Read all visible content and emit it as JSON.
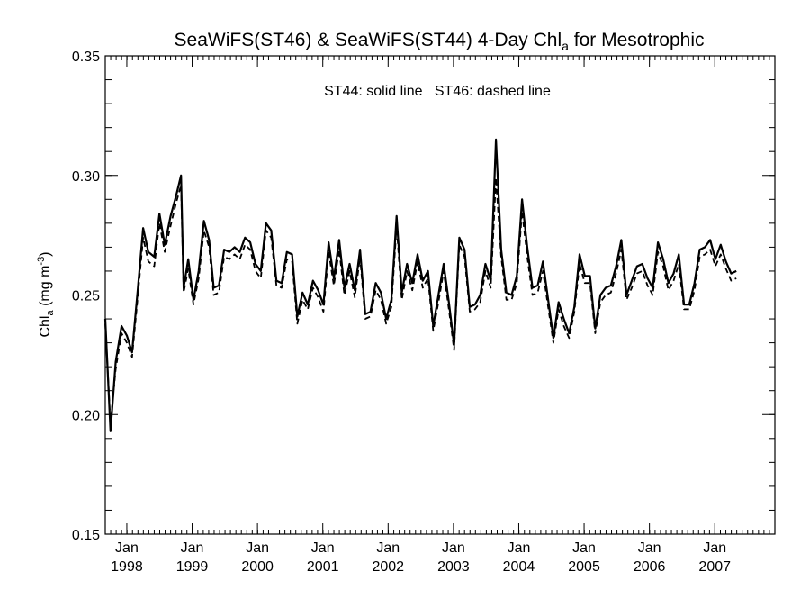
{
  "chart_data": {
    "type": "line",
    "title": {
      "prefix": "SeaWiFS(ST46) & SeaWiFS(ST44) 4-Day Chl",
      "subscript": "a",
      "suffix": " for Mesotrophic"
    },
    "ylabel": {
      "main": "Chl",
      "subscript": "a",
      "unit": " (mg m",
      "superscript": "-3",
      "close": ")"
    },
    "annotation": "ST44: solid line   ST46: dashed line",
    "xlim": [
      1997.67,
      2007.92
    ],
    "ylim": [
      0.15,
      0.35
    ],
    "y_ticks": [
      {
        "value": 0.15,
        "label": "0.15"
      },
      {
        "value": 0.2,
        "label": "0.20"
      },
      {
        "value": 0.25,
        "label": "0.25"
      },
      {
        "value": 0.3,
        "label": "0.30"
      },
      {
        "value": 0.35,
        "label": "0.35"
      }
    ],
    "y_minor_step": 0.01,
    "x_ticks": [
      {
        "value": 1998.0,
        "month": "Jan",
        "year": "1998"
      },
      {
        "value": 1999.0,
        "month": "Jan",
        "year": "1999"
      },
      {
        "value": 2000.0,
        "month": "Jan",
        "year": "2000"
      },
      {
        "value": 2001.0,
        "month": "Jan",
        "year": "2001"
      },
      {
        "value": 2002.0,
        "month": "Jan",
        "year": "2002"
      },
      {
        "value": 2003.0,
        "month": "Jan",
        "year": "2003"
      },
      {
        "value": 2004.0,
        "month": "Jan",
        "year": "2004"
      },
      {
        "value": 2005.0,
        "month": "Jan",
        "year": "2005"
      },
      {
        "value": 2006.0,
        "month": "Jan",
        "year": "2006"
      },
      {
        "value": 2007.0,
        "month": "Jan",
        "year": "2007"
      }
    ],
    "x_minor_step": 0.08333,
    "series": [
      {
        "name": "ST44",
        "style": "solid",
        "points": [
          [
            1997.67,
            0.24
          ],
          [
            1997.75,
            0.193
          ],
          [
            1997.83,
            0.222
          ],
          [
            1997.92,
            0.237
          ],
          [
            1998.0,
            0.233
          ],
          [
            1998.08,
            0.226
          ],
          [
            1998.17,
            0.253
          ],
          [
            1998.25,
            0.278
          ],
          [
            1998.33,
            0.268
          ],
          [
            1998.42,
            0.266
          ],
          [
            1998.5,
            0.284
          ],
          [
            1998.58,
            0.271
          ],
          [
            1998.67,
            0.283
          ],
          [
            1998.75,
            0.291
          ],
          [
            1998.83,
            0.3
          ],
          [
            1998.87,
            0.253
          ],
          [
            1998.94,
            0.265
          ],
          [
            1999.02,
            0.248
          ],
          [
            1999.1,
            0.26
          ],
          [
            1999.18,
            0.281
          ],
          [
            1999.26,
            0.273
          ],
          [
            1999.33,
            0.253
          ],
          [
            1999.41,
            0.254
          ],
          [
            1999.49,
            0.269
          ],
          [
            1999.57,
            0.268
          ],
          [
            1999.65,
            0.27
          ],
          [
            1999.73,
            0.268
          ],
          [
            1999.81,
            0.274
          ],
          [
            1999.89,
            0.272
          ],
          [
            1999.97,
            0.263
          ],
          [
            2000.05,
            0.26
          ],
          [
            2000.13,
            0.28
          ],
          [
            2000.21,
            0.277
          ],
          [
            2000.29,
            0.256
          ],
          [
            2000.37,
            0.255
          ],
          [
            2000.45,
            0.268
          ],
          [
            2000.53,
            0.267
          ],
          [
            2000.61,
            0.241
          ],
          [
            2000.69,
            0.251
          ],
          [
            2000.77,
            0.246
          ],
          [
            2000.85,
            0.256
          ],
          [
            2000.93,
            0.252
          ],
          [
            2001.01,
            0.246
          ],
          [
            2001.09,
            0.272
          ],
          [
            2001.17,
            0.257
          ],
          [
            2001.25,
            0.273
          ],
          [
            2001.33,
            0.253
          ],
          [
            2001.41,
            0.263
          ],
          [
            2001.49,
            0.252
          ],
          [
            2001.57,
            0.269
          ],
          [
            2001.65,
            0.242
          ],
          [
            2001.73,
            0.243
          ],
          [
            2001.81,
            0.255
          ],
          [
            2001.89,
            0.251
          ],
          [
            2001.97,
            0.24
          ],
          [
            2002.05,
            0.248
          ],
          [
            2002.13,
            0.283
          ],
          [
            2002.21,
            0.251
          ],
          [
            2002.29,
            0.263
          ],
          [
            2002.37,
            0.255
          ],
          [
            2002.45,
            0.267
          ],
          [
            2002.53,
            0.256
          ],
          [
            2002.61,
            0.26
          ],
          [
            2002.69,
            0.237
          ],
          [
            2002.77,
            0.25
          ],
          [
            2002.85,
            0.263
          ],
          [
            2002.93,
            0.247
          ],
          [
            2003.01,
            0.229
          ],
          [
            2003.09,
            0.274
          ],
          [
            2003.17,
            0.269
          ],
          [
            2003.25,
            0.245
          ],
          [
            2003.33,
            0.246
          ],
          [
            2003.41,
            0.25
          ],
          [
            2003.49,
            0.263
          ],
          [
            2003.57,
            0.256
          ],
          [
            2003.65,
            0.315
          ],
          [
            2003.73,
            0.269
          ],
          [
            2003.81,
            0.251
          ],
          [
            2003.89,
            0.25
          ],
          [
            2003.97,
            0.258
          ],
          [
            2004.05,
            0.29
          ],
          [
            2004.13,
            0.27
          ],
          [
            2004.21,
            0.253
          ],
          [
            2004.29,
            0.254
          ],
          [
            2004.37,
            0.264
          ],
          [
            2004.45,
            0.248
          ],
          [
            2004.53,
            0.232
          ],
          [
            2004.61,
            0.247
          ],
          [
            2004.69,
            0.24
          ],
          [
            2004.77,
            0.234
          ],
          [
            2004.85,
            0.245
          ],
          [
            2004.93,
            0.267
          ],
          [
            2005.01,
            0.258
          ],
          [
            2005.09,
            0.258
          ],
          [
            2005.17,
            0.236
          ],
          [
            2005.25,
            0.25
          ],
          [
            2005.33,
            0.253
          ],
          [
            2005.41,
            0.254
          ],
          [
            2005.49,
            0.262
          ],
          [
            2005.57,
            0.273
          ],
          [
            2005.65,
            0.25
          ],
          [
            2005.73,
            0.256
          ],
          [
            2005.81,
            0.262
          ],
          [
            2005.89,
            0.263
          ],
          [
            2005.97,
            0.257
          ],
          [
            2006.05,
            0.253
          ],
          [
            2006.13,
            0.272
          ],
          [
            2006.21,
            0.265
          ],
          [
            2006.29,
            0.255
          ],
          [
            2006.37,
            0.259
          ],
          [
            2006.45,
            0.267
          ],
          [
            2006.53,
            0.246
          ],
          [
            2006.61,
            0.246
          ],
          [
            2006.69,
            0.255
          ],
          [
            2006.77,
            0.269
          ],
          [
            2006.85,
            0.27
          ],
          [
            2006.93,
            0.273
          ],
          [
            2007.01,
            0.265
          ],
          [
            2007.09,
            0.271
          ],
          [
            2007.17,
            0.264
          ],
          [
            2007.25,
            0.259
          ],
          [
            2007.33,
            0.26
          ]
        ]
      },
      {
        "name": "ST46",
        "style": "dashed",
        "points": [
          [
            1997.67,
            0.238
          ],
          [
            1997.75,
            0.196
          ],
          [
            1997.83,
            0.219
          ],
          [
            1997.92,
            0.234
          ],
          [
            1998.0,
            0.23
          ],
          [
            1998.08,
            0.224
          ],
          [
            1998.17,
            0.25
          ],
          [
            1998.25,
            0.274
          ],
          [
            1998.33,
            0.264
          ],
          [
            1998.42,
            0.262
          ],
          [
            1998.5,
            0.28
          ],
          [
            1998.58,
            0.268
          ],
          [
            1998.67,
            0.279
          ],
          [
            1998.75,
            0.288
          ],
          [
            1998.83,
            0.296
          ],
          [
            1998.87,
            0.251
          ],
          [
            1998.94,
            0.261
          ],
          [
            1999.02,
            0.246
          ],
          [
            1999.1,
            0.257
          ],
          [
            1999.18,
            0.277
          ],
          [
            1999.26,
            0.27
          ],
          [
            1999.33,
            0.25
          ],
          [
            1999.41,
            0.251
          ],
          [
            1999.49,
            0.266
          ],
          [
            1999.57,
            0.265
          ],
          [
            1999.65,
            0.267
          ],
          [
            1999.73,
            0.265
          ],
          [
            1999.81,
            0.271
          ],
          [
            1999.89,
            0.269
          ],
          [
            1999.97,
            0.26
          ],
          [
            2000.05,
            0.257
          ],
          [
            2000.13,
            0.277
          ],
          [
            2000.21,
            0.274
          ],
          [
            2000.29,
            0.254
          ],
          [
            2000.37,
            0.253
          ],
          [
            2000.45,
            0.265
          ],
          [
            2000.53,
            0.264
          ],
          [
            2000.61,
            0.238
          ],
          [
            2000.69,
            0.248
          ],
          [
            2000.77,
            0.244
          ],
          [
            2000.85,
            0.253
          ],
          [
            2000.93,
            0.249
          ],
          [
            2001.01,
            0.243
          ],
          [
            2001.09,
            0.268
          ],
          [
            2001.17,
            0.254
          ],
          [
            2001.25,
            0.269
          ],
          [
            2001.33,
            0.25
          ],
          [
            2001.41,
            0.26
          ],
          [
            2001.49,
            0.249
          ],
          [
            2001.57,
            0.266
          ],
          [
            2001.65,
            0.24
          ],
          [
            2001.73,
            0.241
          ],
          [
            2001.81,
            0.252
          ],
          [
            2001.89,
            0.248
          ],
          [
            2001.97,
            0.238
          ],
          [
            2002.05,
            0.245
          ],
          [
            2002.13,
            0.279
          ],
          [
            2002.21,
            0.248
          ],
          [
            2002.29,
            0.26
          ],
          [
            2002.37,
            0.252
          ],
          [
            2002.45,
            0.264
          ],
          [
            2002.53,
            0.253
          ],
          [
            2002.61,
            0.257
          ],
          [
            2002.69,
            0.235
          ],
          [
            2002.77,
            0.247
          ],
          [
            2002.85,
            0.26
          ],
          [
            2002.93,
            0.244
          ],
          [
            2003.01,
            0.227
          ],
          [
            2003.09,
            0.271
          ],
          [
            2003.17,
            0.266
          ],
          [
            2003.25,
            0.243
          ],
          [
            2003.33,
            0.244
          ],
          [
            2003.41,
            0.247
          ],
          [
            2003.49,
            0.26
          ],
          [
            2003.57,
            0.253
          ],
          [
            2003.65,
            0.299
          ],
          [
            2003.73,
            0.266
          ],
          [
            2003.81,
            0.248
          ],
          [
            2003.89,
            0.248
          ],
          [
            2003.97,
            0.255
          ],
          [
            2004.05,
            0.285
          ],
          [
            2004.13,
            0.266
          ],
          [
            2004.21,
            0.25
          ],
          [
            2004.29,
            0.251
          ],
          [
            2004.37,
            0.26
          ],
          [
            2004.45,
            0.245
          ],
          [
            2004.53,
            0.23
          ],
          [
            2004.61,
            0.244
          ],
          [
            2004.69,
            0.237
          ],
          [
            2004.77,
            0.232
          ],
          [
            2004.85,
            0.243
          ],
          [
            2004.93,
            0.263
          ],
          [
            2005.01,
            0.255
          ],
          [
            2005.09,
            0.255
          ],
          [
            2005.17,
            0.234
          ],
          [
            2005.25,
            0.247
          ],
          [
            2005.33,
            0.25
          ],
          [
            2005.41,
            0.251
          ],
          [
            2005.49,
            0.259
          ],
          [
            2005.57,
            0.269
          ],
          [
            2005.65,
            0.248
          ],
          [
            2005.73,
            0.253
          ],
          [
            2005.81,
            0.259
          ],
          [
            2005.89,
            0.26
          ],
          [
            2005.97,
            0.254
          ],
          [
            2006.05,
            0.25
          ],
          [
            2006.13,
            0.268
          ],
          [
            2006.21,
            0.262
          ],
          [
            2006.29,
            0.252
          ],
          [
            2006.37,
            0.256
          ],
          [
            2006.45,
            0.263
          ],
          [
            2006.53,
            0.244
          ],
          [
            2006.61,
            0.244
          ],
          [
            2006.69,
            0.252
          ],
          [
            2006.77,
            0.266
          ],
          [
            2006.85,
            0.267
          ],
          [
            2006.93,
            0.269
          ],
          [
            2007.01,
            0.262
          ],
          [
            2007.09,
            0.267
          ],
          [
            2007.17,
            0.261
          ],
          [
            2007.25,
            0.256
          ],
          [
            2007.33,
            0.257
          ]
        ]
      }
    ]
  }
}
